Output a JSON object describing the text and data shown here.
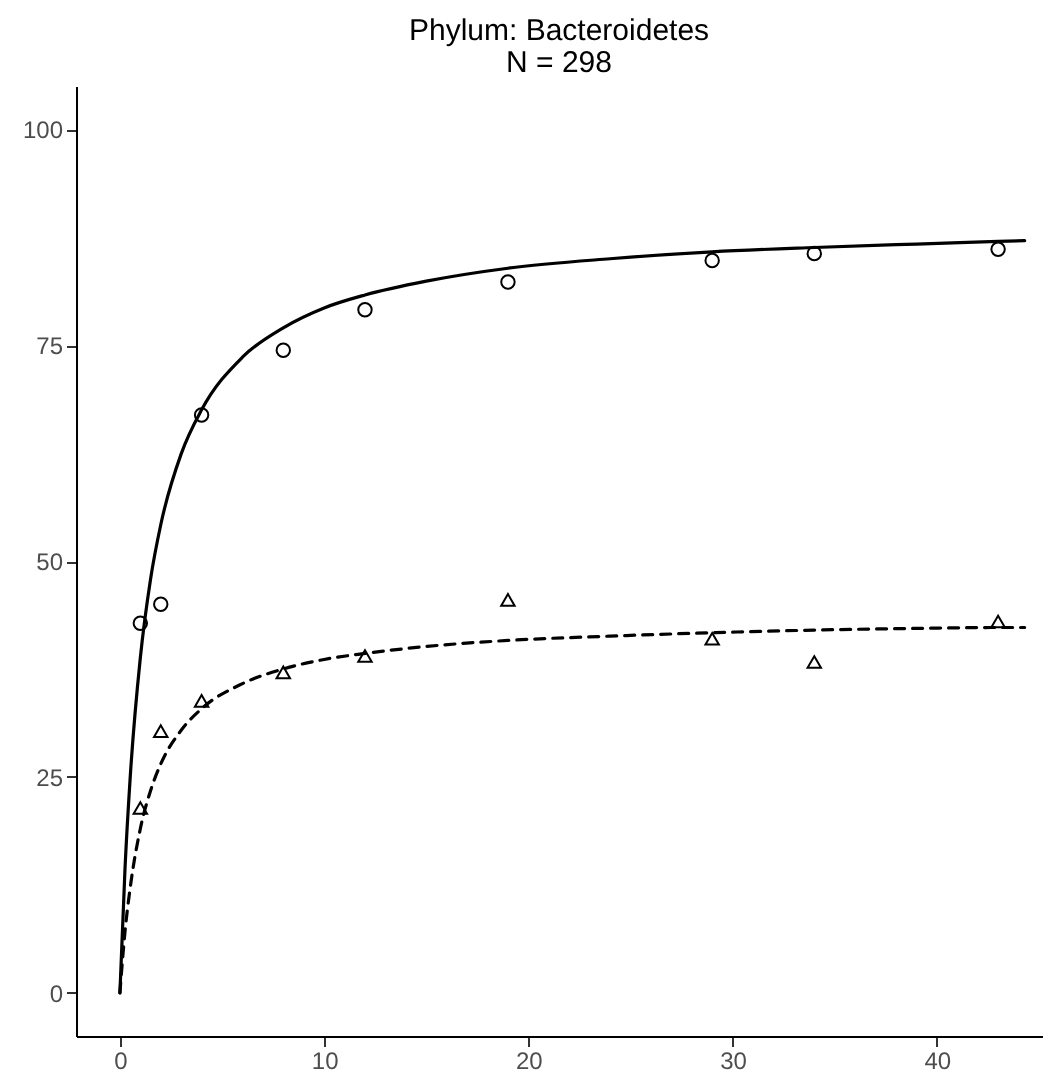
{
  "chart_data": {
    "type": "scatter",
    "title": "Phylum: Bacteroidetes",
    "subtitle": "N = 298",
    "xlim": [
      -2.15,
      45.15
    ],
    "xticks": [
      0,
      10,
      20,
      30,
      40
    ],
    "ylim": [
      -5,
      105
    ],
    "yticks": [
      0,
      25,
      50,
      75,
      100
    ],
    "grid": false,
    "series": [
      {
        "marker": "circle",
        "color": "#000000",
        "x": [
          1,
          2,
          4,
          8,
          12,
          19,
          29,
          34,
          43
        ],
        "values": [
          42.8,
          45,
          66.9,
          74.4,
          79.1,
          82.3,
          84.8,
          85.6,
          86.1
        ]
      },
      {
        "marker": "triangle",
        "color": "#000000",
        "x": [
          1,
          2,
          4,
          8,
          12,
          19,
          29,
          34,
          43
        ],
        "values": [
          21.4,
          30.3,
          33.8,
          37.1,
          39,
          45.5,
          41,
          38.3,
          43
        ]
      },
      {
        "type": "line",
        "line_style": "solid",
        "color": "#000000",
        "x": [
          0,
          0.25,
          0.5,
          1,
          1.5,
          2,
          3,
          4,
          6,
          8,
          10,
          12,
          15,
          19,
          24,
          29,
          34,
          39,
          43,
          44.3
        ],
        "values": [
          0,
          14.4,
          24.8,
          38.8,
          47.9,
          54.2,
          62.4,
          67.5,
          73.6,
          77.0,
          79.3,
          80.8,
          82.4,
          83.9,
          85.0,
          85.8,
          86.3,
          86.7,
          87.0,
          87.1
        ]
      },
      {
        "type": "line",
        "line_style": "dashed",
        "color": "#000000",
        "x": [
          0,
          0.25,
          0.5,
          1,
          1.5,
          2,
          3,
          4,
          6,
          8,
          10,
          12,
          15,
          19,
          24,
          29,
          34,
          39,
          43,
          44.3
        ],
        "values": [
          0,
          7.1,
          12.1,
          19.0,
          23.4,
          26.5,
          30.4,
          32.9,
          35.8,
          37.5,
          38.6,
          39.3,
          40.1,
          40.8,
          41.3,
          41.7,
          42.0,
          42.2,
          42.3,
          42.3
        ]
      }
    ]
  }
}
